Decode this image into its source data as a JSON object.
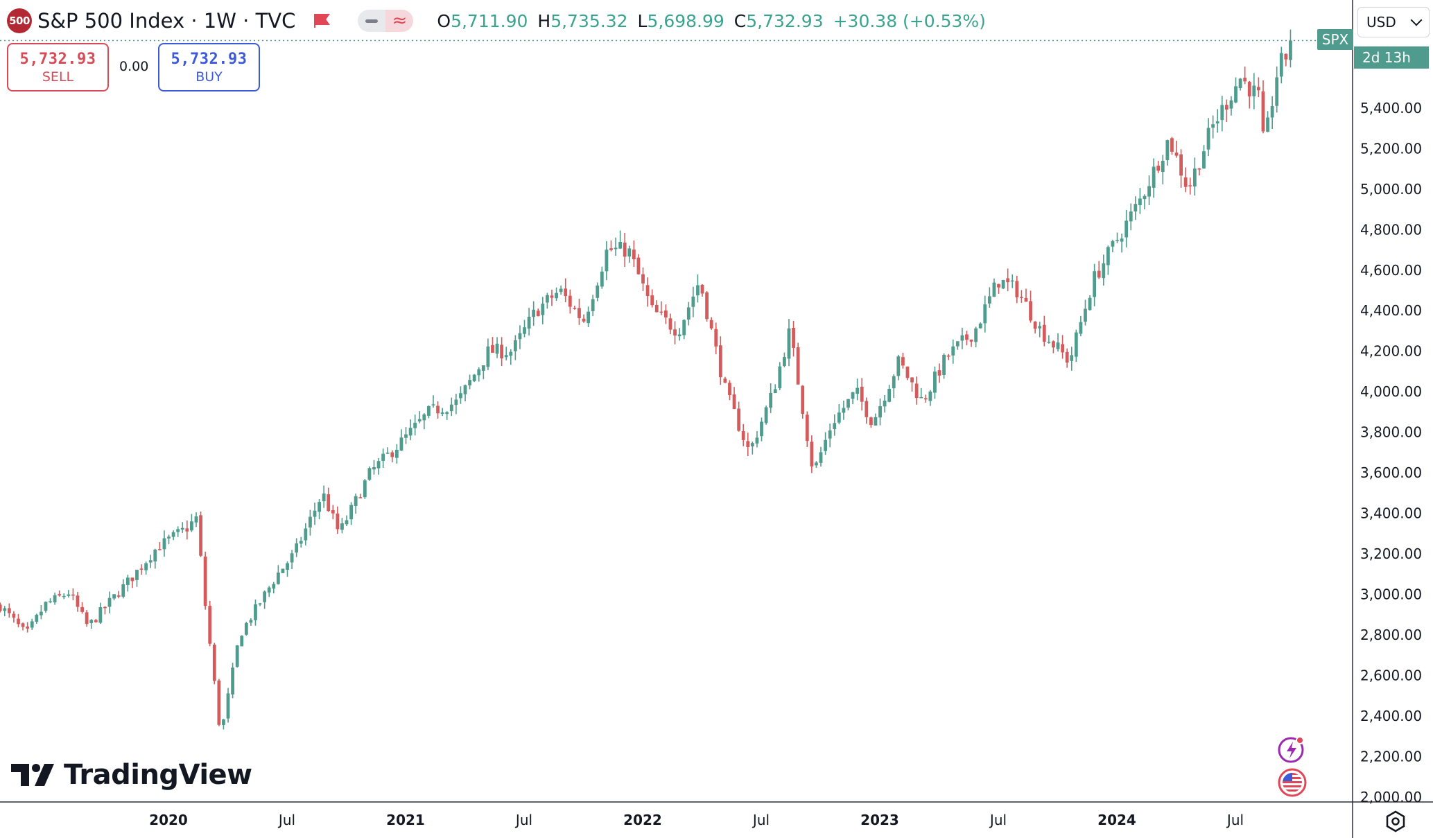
{
  "header": {
    "logo_badge": "500",
    "symbol_title": "S&P 500 Index · 1W · TVC",
    "ohlc": [
      {
        "key": "O",
        "value": "5,711.90"
      },
      {
        "key": "H",
        "value": "5,735.32"
      },
      {
        "key": "L",
        "value": "5,698.99"
      },
      {
        "key": "C",
        "value": "5,732.93"
      }
    ],
    "change": "+30.38 (+0.53%)",
    "icons": [
      "flag-icon",
      "line-style-icon",
      "wave-compare-icon"
    ]
  },
  "trade": {
    "sell_price": "5,732.93",
    "sell_label": "SELL",
    "spread": "0.00",
    "buy_price": "5,732.93",
    "buy_label": "BUY"
  },
  "price_axis": {
    "currency": "USD",
    "symbol_tag": "SPX",
    "countdown": "2d 13h"
  },
  "brand": "TradingView",
  "colors": {
    "up": "#4f9b8d",
    "down": "#d35b5b",
    "logo_red": "#b22833",
    "sell": "#d84a55",
    "buy": "#3d5ad8"
  },
  "chart_data": {
    "type": "candlestick",
    "interval": "1W",
    "y_ticks": [
      2000,
      2200,
      2400,
      2600,
      2800,
      3000,
      3200,
      3400,
      3600,
      3800,
      4000,
      4200,
      4400,
      4600,
      4800,
      5000,
      5200,
      5400
    ],
    "y_tick_labels": [
      "2,000.00",
      "2,200.00",
      "2,400.00",
      "2,600.00",
      "2,800.00",
      "3,000.00",
      "3,200.00",
      "3,400.00",
      "3,600.00",
      "3,800.00",
      "4,000.00",
      "4,200.00",
      "4,400.00",
      "4,600.00",
      "4,800.00",
      "5,000.00",
      "5,200.00",
      "5,400.00"
    ],
    "x_labels": [
      {
        "label": "2020",
        "year": 2020.0,
        "bold": true
      },
      {
        "label": "Jul",
        "year": 2020.5,
        "bold": false
      },
      {
        "label": "2021",
        "year": 2021.0,
        "bold": true
      },
      {
        "label": "Jul",
        "year": 2021.5,
        "bold": false
      },
      {
        "label": "2022",
        "year": 2022.0,
        "bold": true
      },
      {
        "label": "Jul",
        "year": 2022.5,
        "bold": false
      },
      {
        "label": "2023",
        "year": 2023.0,
        "bold": true
      },
      {
        "label": "Jul",
        "year": 2023.5,
        "bold": false
      },
      {
        "label": "2024",
        "year": 2024.0,
        "bold": true
      },
      {
        "label": "Jul",
        "year": 2024.5,
        "bold": false
      }
    ],
    "last_price": 5732.93,
    "anchors": [
      [
        2019.29,
        2945
      ],
      [
        2019.4,
        2800
      ],
      [
        2019.48,
        2950
      ],
      [
        2019.58,
        3010
      ],
      [
        2019.66,
        2840
      ],
      [
        2019.75,
        2960
      ],
      [
        2019.85,
        3090
      ],
      [
        2019.95,
        3230
      ],
      [
        2020.08,
        3330
      ],
      [
        2020.12,
        3380
      ],
      [
        2020.15,
        3000
      ],
      [
        2020.22,
        2300
      ],
      [
        2020.3,
        2800
      ],
      [
        2020.38,
        2950
      ],
      [
        2020.46,
        3100
      ],
      [
        2020.53,
        3200
      ],
      [
        2020.65,
        3500
      ],
      [
        2020.72,
        3300
      ],
      [
        2020.85,
        3600
      ],
      [
        2020.98,
        3750
      ],
      [
        2021.1,
        3900
      ],
      [
        2021.22,
        3950
      ],
      [
        2021.35,
        4200
      ],
      [
        2021.45,
        4200
      ],
      [
        2021.55,
        4400
      ],
      [
        2021.65,
        4500
      ],
      [
        2021.75,
        4350
      ],
      [
        2021.85,
        4700
      ],
      [
        2021.94,
        4700
      ],
      [
        2022.04,
        4400
      ],
      [
        2022.15,
        4300
      ],
      [
        2022.24,
        4550
      ],
      [
        2022.35,
        4000
      ],
      [
        2022.45,
        3700
      ],
      [
        2022.55,
        4000
      ],
      [
        2022.62,
        4300
      ],
      [
        2022.72,
        3600
      ],
      [
        2022.8,
        3850
      ],
      [
        2022.9,
        4000
      ],
      [
        2022.97,
        3850
      ],
      [
        2023.08,
        4150
      ],
      [
        2023.18,
        3950
      ],
      [
        2023.28,
        4170
      ],
      [
        2023.4,
        4300
      ],
      [
        2023.5,
        4550
      ],
      [
        2023.58,
        4500
      ],
      [
        2023.68,
        4300
      ],
      [
        2023.8,
        4150
      ],
      [
        2023.9,
        4550
      ],
      [
        2024.0,
        4750
      ],
      [
        2024.1,
        4950
      ],
      [
        2024.22,
        5250
      ],
      [
        2024.3,
        5000
      ],
      [
        2024.4,
        5300
      ],
      [
        2024.52,
        5550
      ],
      [
        2024.6,
        5450
      ],
      [
        2024.62,
        5200
      ],
      [
        2024.68,
        5600
      ],
      [
        2024.74,
        5700
      ]
    ]
  }
}
